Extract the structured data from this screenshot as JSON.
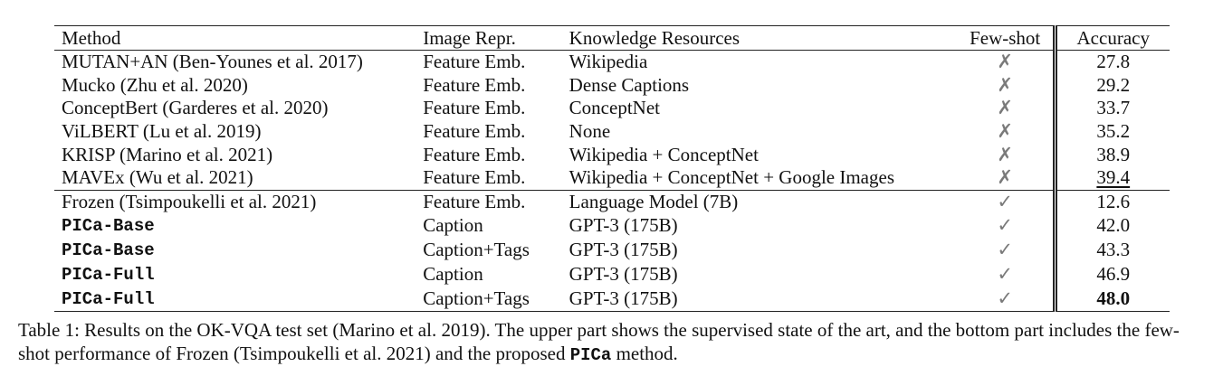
{
  "table": {
    "headers": [
      "Method",
      "Image Repr.",
      "Knowledge Resources",
      "Few-shot",
      "Accuracy"
    ],
    "rows": [
      {
        "method": "MUTAN+AN (Ben-Younes et al. 2017)",
        "repr": "Feature Emb.",
        "knowledge": "Wikipedia",
        "fewshot": "✗",
        "accuracy": "27.8"
      },
      {
        "method": "Mucko (Zhu et al. 2020)",
        "repr": "Feature Emb.",
        "knowledge": "Dense Captions",
        "fewshot": "✗",
        "accuracy": "29.2"
      },
      {
        "method": "ConceptBert (Garderes et al. 2020)",
        "repr": "Feature Emb.",
        "knowledge": "ConceptNet",
        "fewshot": "✗",
        "accuracy": "33.7"
      },
      {
        "method": "ViLBERT (Lu et al. 2019)",
        "repr": "Feature Emb.",
        "knowledge": "None",
        "fewshot": "✗",
        "accuracy": "35.2"
      },
      {
        "method": "KRISP (Marino et al. 2021)",
        "repr": "Feature Emb.",
        "knowledge": "Wikipedia + ConceptNet",
        "fewshot": "✗",
        "accuracy": "38.9"
      },
      {
        "method": "MAVEx (Wu et al. 2021)",
        "repr": "Feature Emb.",
        "knowledge": "Wikipedia + ConceptNet + Google Images",
        "fewshot": "✗",
        "accuracy": "39.4"
      },
      {
        "method": "Frozen (Tsimpoukelli et al. 2021)",
        "repr": "Feature Emb.",
        "knowledge": "Language Model (7B)",
        "fewshot": "✓",
        "accuracy": "12.6"
      },
      {
        "method": "PICa-Base",
        "repr": "Caption",
        "knowledge": "GPT-3 (175B)",
        "fewshot": "✓",
        "accuracy": "42.0"
      },
      {
        "method": "PICa-Base",
        "repr": "Caption+Tags",
        "knowledge": "GPT-3 (175B)",
        "fewshot": "✓",
        "accuracy": "43.3"
      },
      {
        "method": "PICa-Full",
        "repr": "Caption",
        "knowledge": "GPT-3 (175B)",
        "fewshot": "✓",
        "accuracy": "46.9"
      },
      {
        "method": "PICa-Full",
        "repr": "Caption+Tags",
        "knowledge": "GPT-3 (175B)",
        "fewshot": "✓",
        "accuracy": "48.0"
      }
    ]
  },
  "caption": {
    "label": "Table 1:",
    "text_1": " Results on the OK-VQA test set (Marino et al. 2019). The upper part shows the supervised state of the art, and the bottom part includes the few-shot performance of Frozen (Tsimpoukelli et al. 2021) and the proposed ",
    "method_name": "PICa",
    "text_2": " method."
  }
}
